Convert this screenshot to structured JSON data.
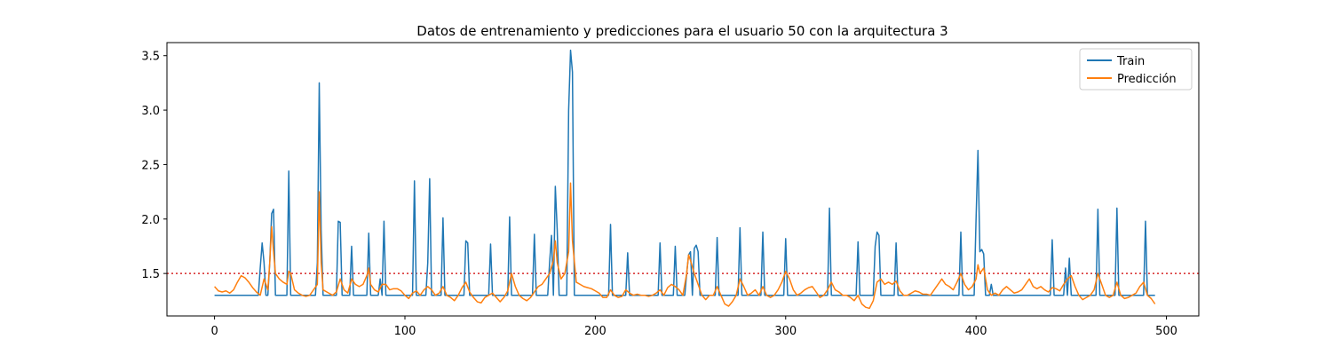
{
  "chart_data": {
    "type": "line",
    "title": "Datos de entrenamiento y predicciones para el usuario 50 con la arquitectura 3",
    "xlabel": "",
    "ylabel": "",
    "xlim": [
      -25,
      517
    ],
    "ylim": [
      1.11,
      3.62
    ],
    "xticks": [
      0,
      100,
      200,
      300,
      400,
      500
    ],
    "yticks": [
      1.5,
      2.0,
      2.5,
      3.0,
      3.5
    ],
    "xtick_labels": [
      "0",
      "100",
      "200",
      "300",
      "400",
      "500"
    ],
    "ytick_labels": [
      "1.5",
      "2.0",
      "2.5",
      "3.0",
      "3.5"
    ],
    "grid": false,
    "legend_position": "top-right",
    "baseline": {
      "y": 1.5,
      "color": "#d62728",
      "style": "dotted"
    },
    "series": [
      {
        "name": "Train",
        "color": "#1f77b4",
        "base": 1.3,
        "n": 495,
        "spikes": [
          [
            24,
            1.55
          ],
          [
            25,
            1.78
          ],
          [
            26,
            1.6
          ],
          [
            29,
            1.6
          ],
          [
            30,
            2.05
          ],
          [
            31,
            2.09
          ],
          [
            39,
            2.44
          ],
          [
            54,
            1.6
          ],
          [
            55,
            3.25
          ],
          [
            56,
            1.9
          ],
          [
            65,
            1.98
          ],
          [
            66,
            1.97
          ],
          [
            72,
            1.75
          ],
          [
            81,
            1.87
          ],
          [
            87,
            1.45
          ],
          [
            89,
            1.98
          ],
          [
            105,
            2.35
          ],
          [
            112,
            1.6
          ],
          [
            113,
            2.37
          ],
          [
            120,
            2.01
          ],
          [
            132,
            1.8
          ],
          [
            133,
            1.78
          ],
          [
            145,
            1.77
          ],
          [
            155,
            2.02
          ],
          [
            168,
            1.86
          ],
          [
            176,
            1.6
          ],
          [
            177,
            1.85
          ],
          [
            179,
            2.3
          ],
          [
            180,
            1.9
          ],
          [
            186,
            3.0
          ],
          [
            187,
            3.55
          ],
          [
            188,
            3.35
          ],
          [
            208,
            1.95
          ],
          [
            217,
            1.69
          ],
          [
            234,
            1.78
          ],
          [
            242,
            1.75
          ],
          [
            248,
            1.5
          ],
          [
            249,
            1.67
          ],
          [
            250,
            1.7
          ],
          [
            252,
            1.73
          ],
          [
            253,
            1.76
          ],
          [
            254,
            1.7
          ],
          [
            264,
            1.83
          ],
          [
            276,
            1.92
          ],
          [
            288,
            1.88
          ],
          [
            300,
            1.82
          ],
          [
            323,
            2.1
          ],
          [
            338,
            1.79
          ],
          [
            347,
            1.75
          ],
          [
            348,
            1.88
          ],
          [
            349,
            1.85
          ],
          [
            358,
            1.78
          ],
          [
            392,
            1.88
          ],
          [
            400,
            2.0
          ],
          [
            401,
            2.63
          ],
          [
            402,
            1.7
          ],
          [
            403,
            1.72
          ],
          [
            404,
            1.68
          ],
          [
            408,
            1.4
          ],
          [
            440,
            1.81
          ],
          [
            447,
            1.55
          ],
          [
            449,
            1.64
          ],
          [
            464,
            2.09
          ],
          [
            474,
            2.1
          ],
          [
            489,
            1.98
          ]
        ]
      },
      {
        "name": "Predicción",
        "color": "#ff7f0e",
        "points": [
          [
            0,
            1.38
          ],
          [
            2,
            1.34
          ],
          [
            4,
            1.33
          ],
          [
            6,
            1.34
          ],
          [
            8,
            1.32
          ],
          [
            10,
            1.35
          ],
          [
            12,
            1.42
          ],
          [
            14,
            1.48
          ],
          [
            16,
            1.46
          ],
          [
            18,
            1.42
          ],
          [
            20,
            1.37
          ],
          [
            22,
            1.33
          ],
          [
            24,
            1.3
          ],
          [
            26,
            1.45
          ],
          [
            28,
            1.35
          ],
          [
            29,
            1.6
          ],
          [
            30,
            1.93
          ],
          [
            31,
            1.7
          ],
          [
            32,
            1.5
          ],
          [
            34,
            1.45
          ],
          [
            36,
            1.42
          ],
          [
            38,
            1.4
          ],
          [
            39,
            1.52
          ],
          [
            40,
            1.5
          ],
          [
            42,
            1.35
          ],
          [
            44,
            1.32
          ],
          [
            46,
            1.3
          ],
          [
            48,
            1.29
          ],
          [
            50,
            1.3
          ],
          [
            52,
            1.35
          ],
          [
            54,
            1.4
          ],
          [
            55,
            2.25
          ],
          [
            56,
            1.6
          ],
          [
            57,
            1.35
          ],
          [
            60,
            1.32
          ],
          [
            62,
            1.3
          ],
          [
            64,
            1.33
          ],
          [
            66,
            1.45
          ],
          [
            68,
            1.35
          ],
          [
            70,
            1.32
          ],
          [
            72,
            1.45
          ],
          [
            74,
            1.4
          ],
          [
            76,
            1.38
          ],
          [
            78,
            1.4
          ],
          [
            80,
            1.48
          ],
          [
            81,
            1.55
          ],
          [
            82,
            1.4
          ],
          [
            84,
            1.35
          ],
          [
            86,
            1.33
          ],
          [
            88,
            1.4
          ],
          [
            90,
            1.4
          ],
          [
            92,
            1.35
          ],
          [
            94,
            1.36
          ],
          [
            96,
            1.36
          ],
          [
            98,
            1.34
          ],
          [
            100,
            1.3
          ],
          [
            102,
            1.27
          ],
          [
            104,
            1.32
          ],
          [
            106,
            1.34
          ],
          [
            108,
            1.3
          ],
          [
            110,
            1.35
          ],
          [
            112,
            1.38
          ],
          [
            114,
            1.35
          ],
          [
            116,
            1.3
          ],
          [
            118,
            1.32
          ],
          [
            120,
            1.38
          ],
          [
            122,
            1.3
          ],
          [
            124,
            1.28
          ],
          [
            126,
            1.25
          ],
          [
            128,
            1.3
          ],
          [
            130,
            1.37
          ],
          [
            132,
            1.42
          ],
          [
            134,
            1.33
          ],
          [
            136,
            1.28
          ],
          [
            138,
            1.24
          ],
          [
            140,
            1.23
          ],
          [
            142,
            1.28
          ],
          [
            144,
            1.3
          ],
          [
            146,
            1.32
          ],
          [
            148,
            1.28
          ],
          [
            150,
            1.24
          ],
          [
            152,
            1.28
          ],
          [
            154,
            1.34
          ],
          [
            156,
            1.5
          ],
          [
            158,
            1.38
          ],
          [
            160,
            1.3
          ],
          [
            162,
            1.27
          ],
          [
            164,
            1.25
          ],
          [
            166,
            1.28
          ],
          [
            168,
            1.33
          ],
          [
            170,
            1.38
          ],
          [
            172,
            1.4
          ],
          [
            174,
            1.45
          ],
          [
            176,
            1.5
          ],
          [
            178,
            1.62
          ],
          [
            179,
            1.8
          ],
          [
            180,
            1.6
          ],
          [
            182,
            1.45
          ],
          [
            184,
            1.5
          ],
          [
            186,
            1.7
          ],
          [
            187,
            2.33
          ],
          [
            188,
            1.8
          ],
          [
            190,
            1.42
          ],
          [
            192,
            1.4
          ],
          [
            194,
            1.38
          ],
          [
            196,
            1.37
          ],
          [
            198,
            1.36
          ],
          [
            200,
            1.34
          ],
          [
            202,
            1.32
          ],
          [
            204,
            1.28
          ],
          [
            206,
            1.28
          ],
          [
            208,
            1.35
          ],
          [
            210,
            1.3
          ],
          [
            212,
            1.28
          ],
          [
            214,
            1.29
          ],
          [
            216,
            1.35
          ],
          [
            218,
            1.32
          ],
          [
            220,
            1.3
          ],
          [
            222,
            1.31
          ],
          [
            224,
            1.3
          ],
          [
            226,
            1.3
          ],
          [
            228,
            1.29
          ],
          [
            230,
            1.3
          ],
          [
            232,
            1.32
          ],
          [
            234,
            1.35
          ],
          [
            236,
            1.3
          ],
          [
            238,
            1.37
          ],
          [
            240,
            1.4
          ],
          [
            242,
            1.38
          ],
          [
            244,
            1.35
          ],
          [
            246,
            1.3
          ],
          [
            248,
            1.5
          ],
          [
            249,
            1.67
          ],
          [
            250,
            1.62
          ],
          [
            252,
            1.5
          ],
          [
            254,
            1.4
          ],
          [
            256,
            1.3
          ],
          [
            258,
            1.26
          ],
          [
            260,
            1.3
          ],
          [
            262,
            1.3
          ],
          [
            264,
            1.38
          ],
          [
            266,
            1.3
          ],
          [
            268,
            1.22
          ],
          [
            270,
            1.2
          ],
          [
            272,
            1.24
          ],
          [
            274,
            1.3
          ],
          [
            276,
            1.45
          ],
          [
            278,
            1.38
          ],
          [
            280,
            1.3
          ],
          [
            282,
            1.32
          ],
          [
            284,
            1.35
          ],
          [
            286,
            1.3
          ],
          [
            288,
            1.38
          ],
          [
            290,
            1.3
          ],
          [
            292,
            1.28
          ],
          [
            294,
            1.3
          ],
          [
            296,
            1.35
          ],
          [
            298,
            1.42
          ],
          [
            300,
            1.52
          ],
          [
            302,
            1.45
          ],
          [
            304,
            1.35
          ],
          [
            306,
            1.3
          ],
          [
            308,
            1.32
          ],
          [
            310,
            1.35
          ],
          [
            312,
            1.37
          ],
          [
            314,
            1.38
          ],
          [
            316,
            1.33
          ],
          [
            318,
            1.28
          ],
          [
            320,
            1.3
          ],
          [
            322,
            1.35
          ],
          [
            324,
            1.42
          ],
          [
            326,
            1.35
          ],
          [
            328,
            1.33
          ],
          [
            330,
            1.3
          ],
          [
            332,
            1.3
          ],
          [
            334,
            1.28
          ],
          [
            336,
            1.25
          ],
          [
            338,
            1.3
          ],
          [
            340,
            1.22
          ],
          [
            342,
            1.19
          ],
          [
            344,
            1.18
          ],
          [
            346,
            1.25
          ],
          [
            348,
            1.42
          ],
          [
            350,
            1.45
          ],
          [
            352,
            1.4
          ],
          [
            354,
            1.42
          ],
          [
            356,
            1.4
          ],
          [
            358,
            1.43
          ],
          [
            360,
            1.34
          ],
          [
            362,
            1.3
          ],
          [
            364,
            1.3
          ],
          [
            366,
            1.32
          ],
          [
            368,
            1.34
          ],
          [
            370,
            1.33
          ],
          [
            372,
            1.31
          ],
          [
            374,
            1.31
          ],
          [
            376,
            1.3
          ],
          [
            378,
            1.35
          ],
          [
            380,
            1.4
          ],
          [
            382,
            1.45
          ],
          [
            384,
            1.4
          ],
          [
            386,
            1.38
          ],
          [
            388,
            1.35
          ],
          [
            390,
            1.42
          ],
          [
            392,
            1.5
          ],
          [
            394,
            1.4
          ],
          [
            396,
            1.35
          ],
          [
            398,
            1.38
          ],
          [
            400,
            1.45
          ],
          [
            401,
            1.58
          ],
          [
            402,
            1.5
          ],
          [
            404,
            1.55
          ],
          [
            406,
            1.35
          ],
          [
            408,
            1.3
          ],
          [
            410,
            1.32
          ],
          [
            412,
            1.3
          ],
          [
            414,
            1.35
          ],
          [
            416,
            1.38
          ],
          [
            418,
            1.35
          ],
          [
            420,
            1.32
          ],
          [
            422,
            1.33
          ],
          [
            424,
            1.35
          ],
          [
            426,
            1.4
          ],
          [
            428,
            1.45
          ],
          [
            430,
            1.38
          ],
          [
            432,
            1.36
          ],
          [
            434,
            1.38
          ],
          [
            436,
            1.35
          ],
          [
            438,
            1.33
          ],
          [
            440,
            1.37
          ],
          [
            442,
            1.36
          ],
          [
            444,
            1.34
          ],
          [
            446,
            1.4
          ],
          [
            448,
            1.45
          ],
          [
            450,
            1.48
          ],
          [
            452,
            1.38
          ],
          [
            454,
            1.3
          ],
          [
            456,
            1.26
          ],
          [
            458,
            1.28
          ],
          [
            460,
            1.3
          ],
          [
            462,
            1.35
          ],
          [
            464,
            1.5
          ],
          [
            466,
            1.4
          ],
          [
            468,
            1.3
          ],
          [
            470,
            1.28
          ],
          [
            472,
            1.3
          ],
          [
            474,
            1.42
          ],
          [
            476,
            1.3
          ],
          [
            478,
            1.27
          ],
          [
            480,
            1.28
          ],
          [
            482,
            1.3
          ],
          [
            484,
            1.32
          ],
          [
            486,
            1.38
          ],
          [
            488,
            1.42
          ],
          [
            490,
            1.3
          ],
          [
            492,
            1.27
          ],
          [
            494,
            1.22
          ]
        ]
      }
    ]
  }
}
